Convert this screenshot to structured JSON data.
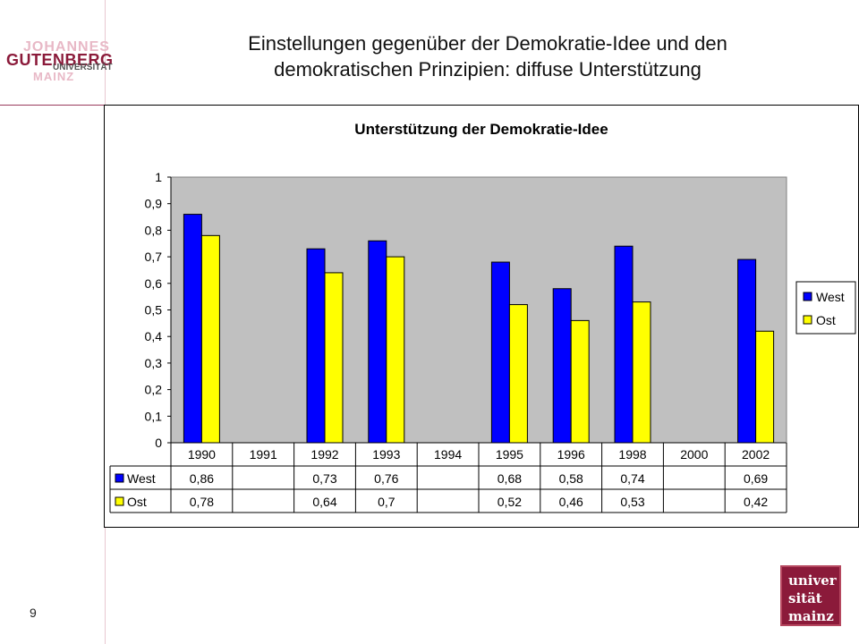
{
  "slide": {
    "title_line1": "Einstellungen gegenüber der Demokratie-Idee und den",
    "title_line2": "demokratischen Prinzipien: diffuse Unterstützung",
    "page_number": "9",
    "logo": {
      "line1": "JOHANNES",
      "line2": "GUTENBERG",
      "line3": "UNIVERSITÄT",
      "line4": "MAINZ"
    },
    "stamp": {
      "line1": "univer",
      "line2": "sität",
      "line3": "mainz"
    }
  },
  "chart_data": {
    "type": "bar",
    "title": "Unterstützung der Demokratie-Idee",
    "categories": [
      "1990",
      "1991",
      "1992",
      "1993",
      "1994",
      "1995",
      "1996",
      "1998",
      "2000",
      "2002"
    ],
    "series": [
      {
        "name": "West",
        "color": "#0000ff",
        "values": [
          0.86,
          null,
          0.73,
          0.76,
          null,
          0.68,
          0.58,
          0.74,
          null,
          0.69
        ]
      },
      {
        "name": "Ost",
        "color": "#ffff00",
        "values": [
          0.78,
          null,
          0.64,
          0.7,
          null,
          0.52,
          0.46,
          0.53,
          null,
          0.42
        ]
      }
    ],
    "ylim": [
      0,
      1
    ],
    "yticks": [
      "0",
      "0,1",
      "0,2",
      "0,3",
      "0,4",
      "0,5",
      "0,6",
      "0,7",
      "0,8",
      "0,9",
      "1"
    ],
    "plot_background": "#c0c0c0",
    "legend_position": "right",
    "data_table": true,
    "decimal_separator": ","
  }
}
